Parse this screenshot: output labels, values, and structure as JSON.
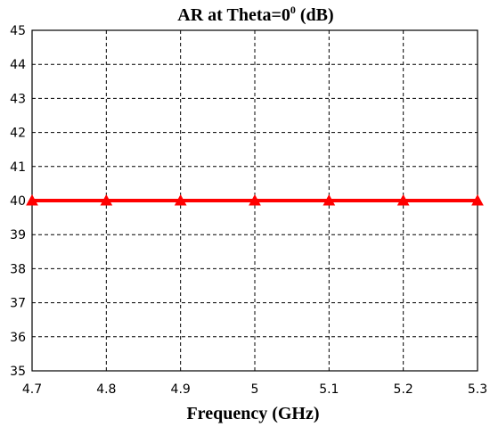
{
  "chart_data": {
    "type": "line",
    "title_main": "AR at Theta=0",
    "title_sup": "0",
    "title_tail": " (dB)",
    "xlabel": "Frequency (GHz)",
    "ylabel": "",
    "xlim": [
      4.7,
      5.3
    ],
    "ylim": [
      35,
      45
    ],
    "x_ticks": [
      "4.7",
      "4.8",
      "4.9",
      "5",
      "5.1",
      "5.2",
      "5.3"
    ],
    "y_ticks": [
      "35",
      "36",
      "37",
      "38",
      "39",
      "40",
      "41",
      "42",
      "43",
      "44",
      "45"
    ],
    "grid": true,
    "series": [
      {
        "color": "#ff0000",
        "marker": "triangle",
        "x": [
          4.7,
          4.8,
          4.9,
          5.0,
          5.1,
          5.2,
          5.3
        ],
        "y": [
          40,
          40,
          40,
          40,
          40,
          40,
          40
        ]
      }
    ]
  }
}
